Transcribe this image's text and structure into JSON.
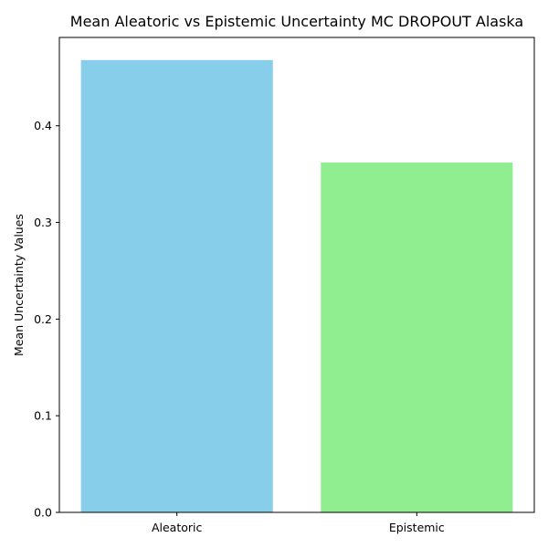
{
  "chart_data": {
    "type": "bar",
    "title": "Mean Aleatoric vs Epistemic Uncertainty MC DROPOUT Alaska",
    "xlabel": "",
    "ylabel": "Mean Uncertainty Values",
    "categories": [
      "Aleatoric",
      "Epistemic"
    ],
    "values": [
      0.468,
      0.362
    ],
    "bar_colors": [
      "#87ceeb",
      "#90ee90"
    ],
    "ylim": [
      0,
      0.4914
    ],
    "yticks": [
      0.0,
      0.1,
      0.2,
      0.3,
      0.4
    ],
    "ytick_labels": [
      "0.0",
      "0.1",
      "0.2",
      "0.3",
      "0.4"
    ],
    "grid": false,
    "legend": "none"
  }
}
